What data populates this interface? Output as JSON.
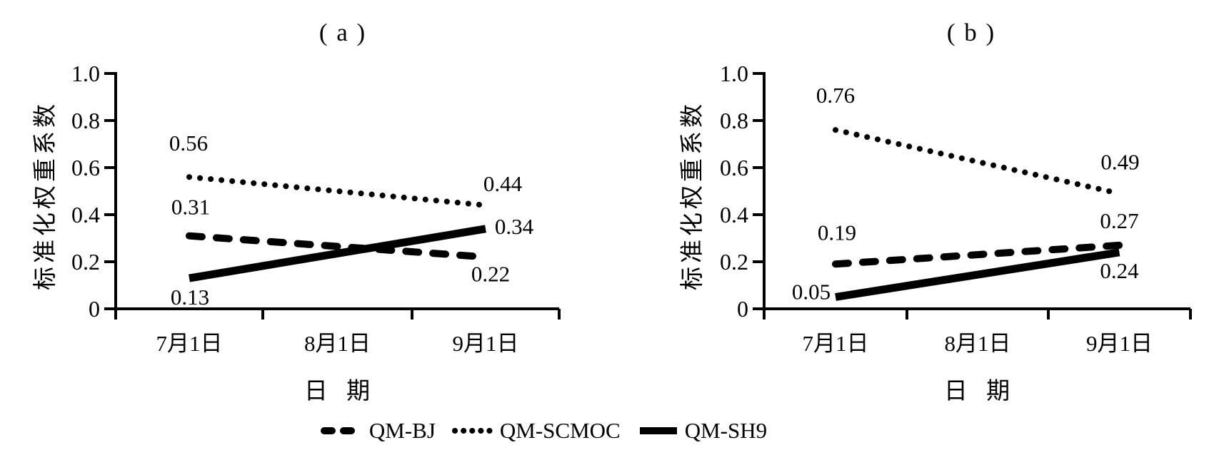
{
  "figure": {
    "background_color": "#ffffff",
    "ink_color": "#000000"
  },
  "chart_data": [
    {
      "id": "a",
      "type": "line",
      "title": "( a )",
      "ylabel": "标准化权重系数",
      "xlabel": "日 期",
      "ylim": [
        0,
        1.0
      ],
      "ytick_labels": [
        "1.0",
        "0.8",
        "0.6",
        "0.4",
        "0.2",
        "0"
      ],
      "categories": [
        "7月1日",
        "8月1日",
        "9月1日"
      ],
      "grid": false,
      "series": [
        {
          "name": "QM-BJ",
          "line_style": "dashed",
          "points": [
            {
              "category": "7月1日",
              "value": 0.31,
              "label": "0.31"
            },
            {
              "category": "9月1日",
              "value": 0.22,
              "label": "0.22"
            }
          ]
        },
        {
          "name": "QM-SCMOC",
          "line_style": "dotted",
          "points": [
            {
              "category": "7月1日",
              "value": 0.56,
              "label": "0.56"
            },
            {
              "category": "9月1日",
              "value": 0.44,
              "label": "0.44"
            }
          ]
        },
        {
          "name": "QM-SH9",
          "line_style": "solid",
          "points": [
            {
              "category": "7月1日",
              "value": 0.13,
              "label": "0.13"
            },
            {
              "category": "9月1日",
              "value": 0.34,
              "label": "0.34"
            }
          ]
        }
      ]
    },
    {
      "id": "b",
      "type": "line",
      "title": "( b )",
      "ylabel": "标准化权重系数",
      "xlabel": "日 期",
      "ylim": [
        0,
        1.0
      ],
      "ytick_labels": [
        "1.0",
        "0.8",
        "0.6",
        "0.4",
        "0.2",
        "0"
      ],
      "categories": [
        "7月1日",
        "8月1日",
        "9月1日"
      ],
      "grid": false,
      "series": [
        {
          "name": "QM-BJ",
          "line_style": "dashed",
          "points": [
            {
              "category": "7月1日",
              "value": 0.19,
              "label": "0.19"
            },
            {
              "category": "9月1日",
              "value": 0.27,
              "label": "0.27"
            }
          ]
        },
        {
          "name": "QM-SCMOC",
          "line_style": "dotted",
          "points": [
            {
              "category": "7月1日",
              "value": 0.76,
              "label": "0.76"
            },
            {
              "category": "9月1日",
              "value": 0.49,
              "label": "0.49"
            }
          ]
        },
        {
          "name": "QM-SH9",
          "line_style": "solid",
          "points": [
            {
              "category": "7月1日",
              "value": 0.05,
              "label": "0.05"
            },
            {
              "category": "9月1日",
              "value": 0.24,
              "label": "0.24"
            }
          ]
        }
      ]
    }
  ],
  "legend": {
    "position": "bottom-center",
    "items": [
      {
        "label": "QM-BJ",
        "line_style": "dashed"
      },
      {
        "label": "QM-SCMOC",
        "line_style": "dotted"
      },
      {
        "label": "QM-SH9",
        "line_style": "solid"
      }
    ]
  }
}
